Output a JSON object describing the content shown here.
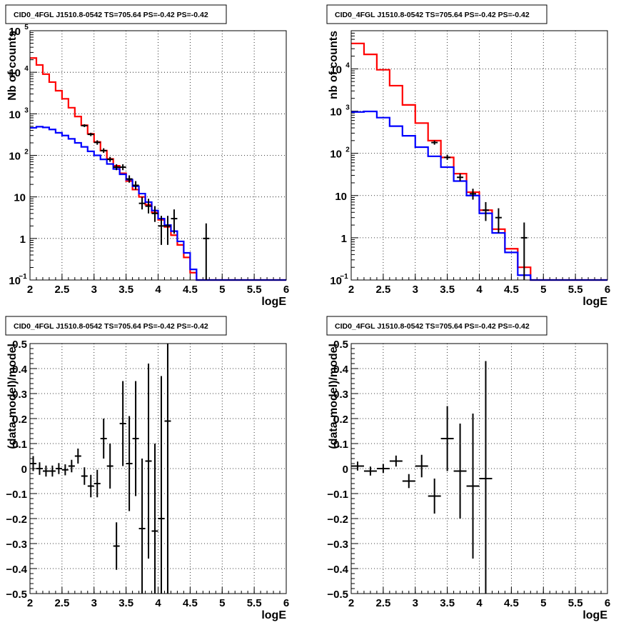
{
  "chart_data": [
    {
      "type": "line",
      "title": "CID0_4FGL J1510.8-0542 TS=705.64 PS=-0.42 PS=-0.42",
      "xlabel": "logE",
      "ylabel": "Nb of counts",
      "xlim": [
        2,
        6
      ],
      "ylim": [
        0.1,
        100000
      ],
      "log_y": true,
      "grid": true,
      "x_ticks": [
        "2",
        "2.5",
        "3",
        "3.5",
        "4",
        "4.5",
        "5",
        "5.5",
        "6"
      ],
      "y_ticks": [
        {
          "v": 0.1,
          "base": "10",
          "exp": "−1"
        },
        {
          "v": 1,
          "base": "1",
          "exp": ""
        },
        {
          "v": 10,
          "base": "10",
          "exp": ""
        },
        {
          "v": 100,
          "base": "10",
          "exp": "2"
        },
        {
          "v": 1000,
          "base": "10",
          "exp": "3"
        },
        {
          "v": 10000,
          "base": "10",
          "exp": "4"
        },
        {
          "v": 100000,
          "base": "10",
          "exp": "5"
        }
      ],
      "bin_edges": [
        2.0,
        2.1,
        2.2,
        2.3,
        2.4,
        2.5,
        2.6,
        2.7,
        2.8,
        2.9,
        3.0,
        3.1,
        3.2,
        3.3,
        3.4,
        3.5,
        3.6,
        3.7,
        3.8,
        3.9,
        4.0,
        4.1,
        4.2,
        4.3,
        4.4,
        4.5,
        4.6,
        4.7,
        4.8,
        4.9,
        5.0,
        5.1,
        5.2,
        5.3,
        5.4,
        5.5,
        5.6,
        5.7,
        5.8,
        5.9,
        6.0
      ],
      "series": [
        {
          "color": "#ff0000",
          "values": [
            22000,
            15000,
            9000,
            5800,
            3600,
            2300,
            1400,
            860,
            530,
            330,
            210,
            130,
            82,
            56,
            37,
            24,
            15,
            10,
            6.5,
            4.2,
            2.8,
            1.9,
            1.2,
            0.7,
            0.35,
            0.15,
            0.1,
            0.1,
            0.1,
            0.1,
            0.1,
            0.1,
            0.1,
            0.1,
            0.1,
            0.1,
            0.1,
            0.1,
            0.1,
            0.1
          ]
        },
        {
          "color": "#0000ff",
          "values": [
            460,
            490,
            470,
            420,
            350,
            300,
            250,
            200,
            160,
            125,
            100,
            80,
            62,
            47,
            35,
            26,
            18,
            12,
            7.5,
            4.7,
            3.0,
            2.1,
            1.5,
            0.85,
            0.45,
            0.18,
            0.1,
            0.1,
            0.1,
            0.1,
            0.1,
            0.1,
            0.1,
            0.1,
            0.1,
            0.1,
            0.1,
            0.1,
            0.1,
            0.1
          ]
        }
      ],
      "data_points": [
        {
          "x": 2.85,
          "y": 520,
          "lo": 480,
          "hi": 560
        },
        {
          "x": 2.95,
          "y": 320,
          "lo": 290,
          "hi": 350
        },
        {
          "x": 3.05,
          "y": 205,
          "lo": 180,
          "hi": 230
        },
        {
          "x": 3.15,
          "y": 130,
          "lo": 115,
          "hi": 148
        },
        {
          "x": 3.25,
          "y": 80,
          "lo": 70,
          "hi": 92
        },
        {
          "x": 3.35,
          "y": 52,
          "lo": 44,
          "hi": 61
        },
        {
          "x": 3.45,
          "y": 52,
          "lo": 44,
          "hi": 61
        },
        {
          "x": 3.55,
          "y": 27,
          "lo": 22,
          "hi": 33
        },
        {
          "x": 3.65,
          "y": 19,
          "lo": 15,
          "hi": 24
        },
        {
          "x": 3.75,
          "y": 7,
          "lo": 5,
          "hi": 10
        },
        {
          "x": 3.85,
          "y": 6,
          "lo": 4,
          "hi": 9
        },
        {
          "x": 3.95,
          "y": 4,
          "lo": 2.5,
          "hi": 6
        },
        {
          "x": 4.05,
          "y": 2,
          "lo": 0.7,
          "hi": 3.5
        },
        {
          "x": 4.15,
          "y": 2,
          "lo": 0.7,
          "hi": 3.5
        },
        {
          "x": 4.25,
          "y": 3,
          "lo": 1.3,
          "hi": 5
        },
        {
          "x": 4.75,
          "y": 1,
          "lo": 0.1,
          "hi": 2.3
        }
      ]
    },
    {
      "type": "line",
      "title": "CID0_4FGL J1510.8-0542 TS=705.64 PS=-0.42 PS=-0.42",
      "xlabel": "logE",
      "ylabel": "nb of counts",
      "xlim": [
        2,
        6
      ],
      "ylim": [
        0.1,
        80000
      ],
      "log_y": true,
      "grid": true,
      "x_ticks": [
        "2",
        "2.5",
        "3",
        "3.5",
        "4",
        "4.5",
        "5",
        "5.5",
        "6"
      ],
      "y_ticks": [
        {
          "v": 0.1,
          "base": "10",
          "exp": "−1"
        },
        {
          "v": 1,
          "base": "1",
          "exp": ""
        },
        {
          "v": 10,
          "base": "10",
          "exp": ""
        },
        {
          "v": 100,
          "base": "10",
          "exp": "2"
        },
        {
          "v": 1000,
          "base": "10",
          "exp": "3"
        },
        {
          "v": 10000,
          "base": "10",
          "exp": "4"
        }
      ],
      "bin_edges": [
        2.0,
        2.2,
        2.4,
        2.6,
        2.8,
        3.0,
        3.2,
        3.4,
        3.6,
        3.8,
        4.0,
        4.2,
        4.4,
        4.6,
        4.8,
        5.0,
        5.2,
        5.4,
        5.6,
        5.8,
        6.0
      ],
      "series": [
        {
          "color": "#ff0000",
          "values": [
            40000,
            22000,
            9500,
            4000,
            1400,
            520,
            200,
            80,
            33,
            12,
            4.5,
            1.6,
            0.55,
            0.2,
            0.1,
            0.1,
            0.1,
            0.1,
            0.1,
            0.1
          ]
        },
        {
          "color": "#0000ff",
          "values": [
            950,
            980,
            700,
            440,
            260,
            140,
            85,
            47,
            22,
            10,
            3.8,
            1.3,
            0.45,
            0.13,
            0.1,
            0.1,
            0.1,
            0.1,
            0.1,
            0.1
          ]
        }
      ],
      "data_points": [
        {
          "x": 3.3,
          "y": 180,
          "lo": 160,
          "hi": 200
        },
        {
          "x": 3.5,
          "y": 80,
          "lo": 70,
          "hi": 92
        },
        {
          "x": 3.7,
          "y": 27,
          "lo": 22,
          "hi": 33
        },
        {
          "x": 3.9,
          "y": 11,
          "lo": 8,
          "hi": 14.5
        },
        {
          "x": 4.1,
          "y": 4.5,
          "lo": 2.5,
          "hi": 7
        },
        {
          "x": 4.3,
          "y": 3,
          "lo": 1.3,
          "hi": 5
        },
        {
          "x": 4.7,
          "y": 1,
          "lo": 0.1,
          "hi": 2.3
        }
      ]
    },
    {
      "type": "scatter",
      "title": "CID0_4FGL J1510.8-0542 TS=705.64 PS=-0.42 PS=-0.42",
      "xlabel": "logE",
      "ylabel": "(data-model)/model",
      "xlim": [
        2,
        6
      ],
      "ylim": [
        -0.5,
        0.5
      ],
      "grid": true,
      "x_ticks": [
        "2",
        "2.5",
        "3",
        "3.5",
        "4",
        "4.5",
        "5",
        "5.5",
        "6"
      ],
      "y_ticks": [
        "−0.5",
        "−0.4",
        "−0.3",
        "−0.2",
        "−0.1",
        "0",
        "0.1",
        "0.2",
        "0.3",
        "0.4",
        "0.5"
      ],
      "points": [
        {
          "x": 2.05,
          "y": 0.02,
          "err": 0.03
        },
        {
          "x": 2.15,
          "y": 0.0,
          "err": 0.025
        },
        {
          "x": 2.25,
          "y": -0.01,
          "err": 0.022
        },
        {
          "x": 2.35,
          "y": -0.01,
          "err": 0.022
        },
        {
          "x": 2.45,
          "y": 0.0,
          "err": 0.022
        },
        {
          "x": 2.55,
          "y": -0.005,
          "err": 0.022
        },
        {
          "x": 2.65,
          "y": 0.01,
          "err": 0.025
        },
        {
          "x": 2.75,
          "y": 0.05,
          "err": 0.03
        },
        {
          "x": 2.85,
          "y": -0.03,
          "err": 0.035
        },
        {
          "x": 2.95,
          "y": -0.07,
          "err": 0.045
        },
        {
          "x": 3.05,
          "y": -0.06,
          "err": 0.055
        },
        {
          "x": 3.15,
          "y": 0.12,
          "err": 0.08
        },
        {
          "x": 3.25,
          "y": 0.01,
          "err": 0.09
        },
        {
          "x": 3.35,
          "y": -0.31,
          "err": 0.095
        },
        {
          "x": 3.45,
          "y": 0.18,
          "err": 0.17
        },
        {
          "x": 3.55,
          "y": 0.02,
          "err": 0.19
        },
        {
          "x": 3.65,
          "y": 0.12,
          "err": 0.23
        },
        {
          "x": 3.75,
          "y": -0.24,
          "err": 0.28
        },
        {
          "x": 3.85,
          "y": 0.03,
          "err": 0.39
        },
        {
          "x": 3.95,
          "y": -0.25,
          "err": 0.35
        },
        {
          "x": 4.05,
          "y": -0.2,
          "err": 0.57
        },
        {
          "x": 4.15,
          "y": 0.19,
          "err": 0.71
        }
      ]
    },
    {
      "type": "scatter",
      "title": "CID0_4FGL J1510.8-0542 TS=705.64 PS=-0.42 PS=-0.42",
      "xlabel": "logE",
      "ylabel": "(data-model)/model",
      "xlim": [
        2,
        6
      ],
      "ylim": [
        -0.5,
        0.5
      ],
      "grid": true,
      "x_ticks": [
        "2",
        "2.5",
        "3",
        "3.5",
        "4",
        "4.5",
        "5",
        "5.5",
        "6"
      ],
      "y_ticks": [
        "−0.5",
        "−0.4",
        "−0.3",
        "−0.2",
        "−0.1",
        "0",
        "0.1",
        "0.2",
        "0.3",
        "0.4",
        "0.5"
      ],
      "points": [
        {
          "x": 2.1,
          "y": 0.01,
          "err": 0.018
        },
        {
          "x": 2.3,
          "y": -0.01,
          "err": 0.018
        },
        {
          "x": 2.5,
          "y": 0.0,
          "err": 0.018
        },
        {
          "x": 2.7,
          "y": 0.03,
          "err": 0.022
        },
        {
          "x": 2.9,
          "y": -0.05,
          "err": 0.028
        },
        {
          "x": 3.1,
          "y": 0.01,
          "err": 0.045
        },
        {
          "x": 3.3,
          "y": -0.11,
          "err": 0.07
        },
        {
          "x": 3.5,
          "y": 0.12,
          "err": 0.13
        },
        {
          "x": 3.7,
          "y": -0.01,
          "err": 0.19
        },
        {
          "x": 3.9,
          "y": -0.07,
          "err": 0.29
        },
        {
          "x": 4.1,
          "y": -0.04,
          "err": 0.47
        }
      ]
    }
  ]
}
